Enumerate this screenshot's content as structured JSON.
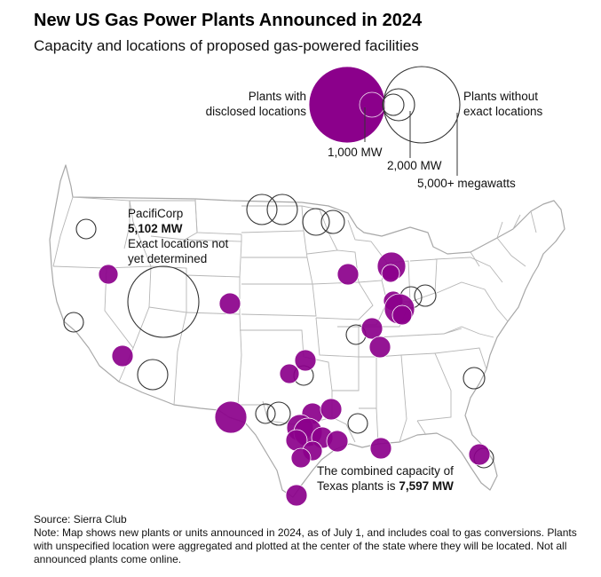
{
  "header": {
    "title": "New US Gas Power Plants Announced in 2024",
    "subtitle": "Capacity and locations of proposed gas-powered facilities"
  },
  "legend": {
    "disclosed_label_line1": "Plants with",
    "disclosed_label_line2": "disclosed locations",
    "undisclosed_label_line1": "Plants without",
    "undisclosed_label_line2": "exact locations",
    "size_1000": "1,000 MW",
    "size_2000": "2,000 MW",
    "size_5000": "5,000+ megawatts"
  },
  "annotations": {
    "pacificorp_name": "PacifiCorp",
    "pacificorp_mw": "5,102 MW",
    "pacificorp_note1": "Exact locations not",
    "pacificorp_note2": "yet determined",
    "texas_line1": "The combined capacity of",
    "texas_line2_prefix": "Texas plants is",
    "texas_mw": "7,597 MW"
  },
  "footer": {
    "source": "Source: Sierra Club",
    "note": "Note: Map shows new plants or units announced in 2024, as of July 1, and includes coal to gas conversions. Plants with unspecified location were aggregated and plotted at the center of the state where they will be located. Not all announced plants come online."
  },
  "colors": {
    "disclosed": "#8b008b",
    "undisclosed_stroke": "#333333",
    "map_stroke": "#a8a8a8"
  }
}
